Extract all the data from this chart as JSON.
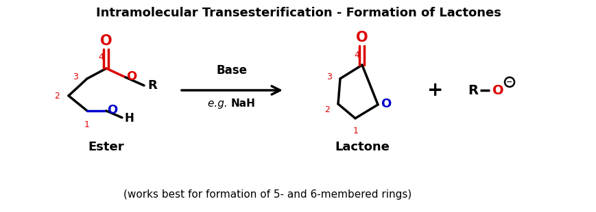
{
  "title": "Intramolecular Transesterification - Formation of Lactones",
  "subtitle": "(works best for formation of 5- and 6-membered rings)",
  "label_ester": "Ester",
  "label_lactone": "Lactone",
  "arrow_label_top": "Base",
  "arrow_label_bottom_italic": "e.g. ",
  "arrow_label_bottom_bold": "NaH",
  "bg_color": "#ffffff",
  "black": "#000000",
  "red": "#dd0000",
  "blue": "#0000cc",
  "lw": 2.5
}
